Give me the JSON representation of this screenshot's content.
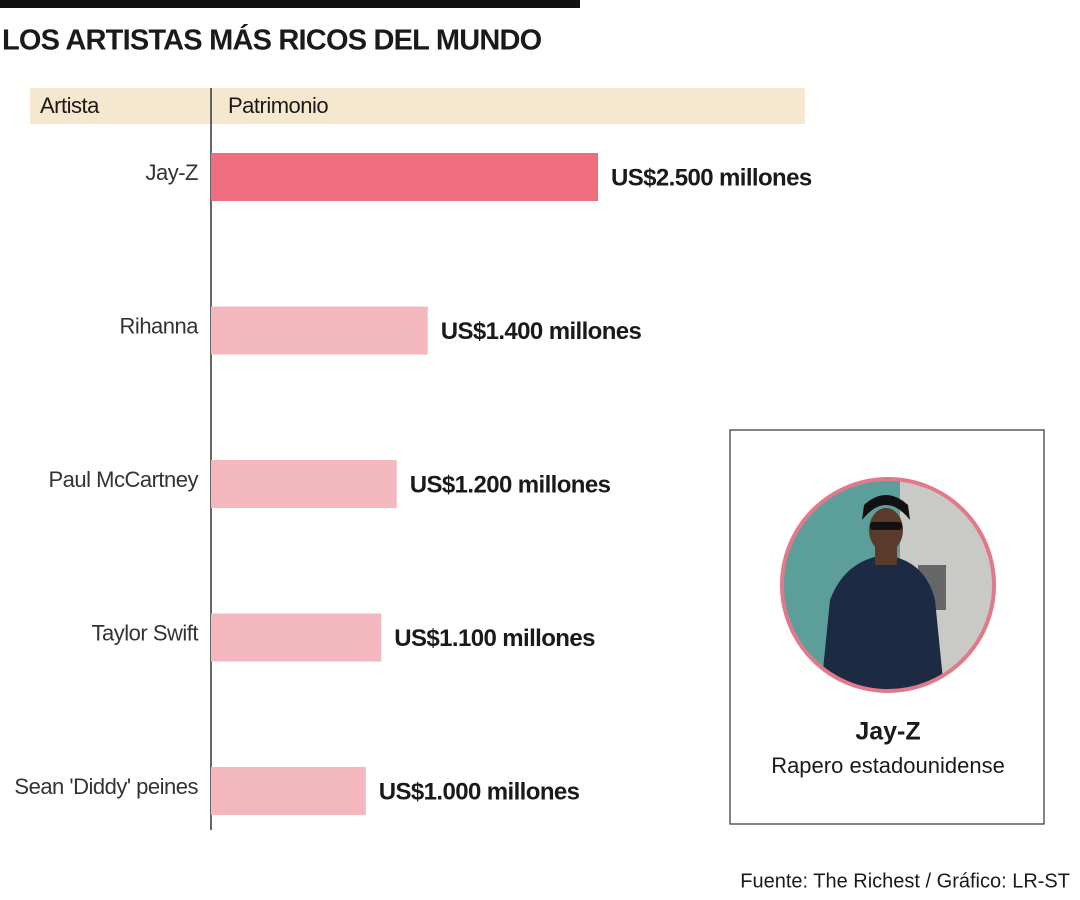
{
  "chart_data": {
    "type": "bar",
    "orientation": "horizontal",
    "title": "LOS ARTISTAS MÁS RICOS DEL MUNDO",
    "header": [
      "Artista",
      "Patrimonio"
    ],
    "categories": [
      "Jay-Z",
      "Rihanna",
      "Paul McCartney",
      "Taylor Swift",
      "Sean 'Diddy' peines"
    ],
    "values": [
      2500,
      1400,
      1200,
      1100,
      1000
    ],
    "value_labels": [
      "US$2.500 millones",
      "US$1.400 millones",
      "US$1.200 millones",
      "US$1.100 millones",
      "US$1.000 millones"
    ],
    "colors": [
      "#ee6e80",
      "#f2b8bd",
      "#f2b8bd",
      "#f2b8bd",
      "#f2b8bd"
    ],
    "feature": {
      "name": "Jay-Z",
      "description": "Rapero estadounidense"
    },
    "source": "Fuente: The Richest / Gráfico: LR-ST"
  }
}
